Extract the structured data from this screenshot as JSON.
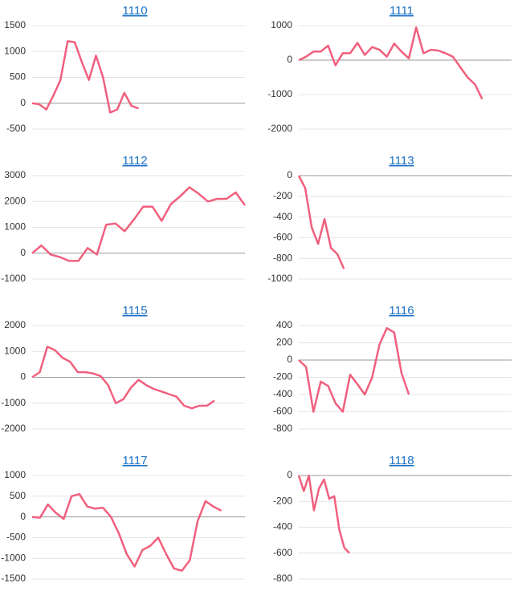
{
  "chart_data": [
    {
      "type": "line",
      "title": "1110",
      "color": "#f0607e",
      "grid": true,
      "ylim": [
        -500,
        1500
      ],
      "yticks": [
        1500,
        1000,
        500,
        0,
        -500
      ],
      "values": [
        0,
        -20,
        -120,
        150,
        450,
        1200,
        1180,
        800,
        450,
        920,
        500,
        -180,
        -120,
        200,
        -50,
        -100,
        null,
        null,
        null,
        null,
        null,
        null,
        null,
        null,
        null,
        null,
        null,
        null,
        null,
        null,
        null
      ]
    },
    {
      "type": "line",
      "title": "1111",
      "color": "#f0607e",
      "grid": true,
      "ylim": [
        -2000,
        1000
      ],
      "yticks": [
        1000,
        0,
        -1000,
        -2000
      ],
      "values": [
        0,
        100,
        250,
        250,
        420,
        -150,
        200,
        200,
        500,
        150,
        380,
        300,
        100,
        480,
        250,
        50,
        950,
        200,
        300,
        280,
        200,
        100,
        -200,
        -500,
        -700,
        -1130,
        null,
        null,
        null,
        null
      ]
    },
    {
      "type": "line",
      "title": "1112",
      "color": "#f0607e",
      "grid": true,
      "ylim": [
        -1000,
        3000
      ],
      "yticks": [
        3000,
        2000,
        1000,
        0,
        -1000
      ],
      "values": [
        0,
        300,
        -50,
        -150,
        -300,
        -300,
        200,
        -50,
        1100,
        1150,
        850,
        1300,
        1800,
        1800,
        1250,
        1900,
        2200,
        2550,
        2300,
        2000,
        2100,
        2100,
        2350,
        1850
      ]
    },
    {
      "type": "line",
      "title": "1113",
      "color": "#f0607e",
      "grid": true,
      "ylim": [
        -1000,
        0
      ],
      "yticks": [
        0,
        -200,
        -400,
        -600,
        -800,
        -1000
      ],
      "values": [
        0,
        -120,
        -500,
        -660,
        -420,
        -700,
        -760,
        -900,
        null,
        null,
        null,
        null,
        null,
        null,
        null,
        null,
        null,
        null,
        null,
        null,
        null,
        null,
        null,
        null,
        null,
        null,
        null,
        null,
        null,
        null,
        null,
        null,
        null,
        null
      ]
    },
    {
      "type": "line",
      "title": "1115",
      "color": "#f0607e",
      "grid": true,
      "ylim": [
        -2000,
        2000
      ],
      "yticks": [
        2000,
        1000,
        0,
        -1000,
        -2000
      ],
      "values": [
        0,
        200,
        1180,
        1050,
        750,
        600,
        200,
        200,
        150,
        50,
        -300,
        -1000,
        -850,
        -400,
        -100,
        -300,
        -450,
        -550,
        -650,
        -750,
        -1100,
        -1200,
        -1100,
        -1100,
        -900,
        null,
        null,
        null,
        null
      ]
    },
    {
      "type": "line",
      "title": "1116",
      "color": "#f0607e",
      "grid": true,
      "ylim": [
        -800,
        400
      ],
      "yticks": [
        400,
        200,
        0,
        -200,
        -400,
        -600,
        -800
      ],
      "values": [
        0,
        -80,
        -600,
        -250,
        -300,
        -500,
        -600,
        -170,
        -280,
        -400,
        -200,
        180,
        370,
        320,
        -150,
        -400,
        null,
        null,
        null,
        null,
        null,
        null,
        null,
        null,
        null,
        null,
        null,
        null,
        null,
        null
      ]
    },
    {
      "type": "line",
      "title": "1117",
      "color": "#f0607e",
      "grid": true,
      "ylim": [
        -1500,
        1000
      ],
      "yticks": [
        1000,
        500,
        0,
        -500,
        -1000,
        -1500
      ],
      "values": [
        0,
        -20,
        300,
        100,
        -50,
        500,
        550,
        250,
        200,
        220,
        0,
        -400,
        -900,
        -1200,
        -800,
        -700,
        -500,
        -900,
        -1250,
        -1300,
        -1050,
        -100,
        380,
        250,
        150,
        null,
        null,
        null
      ]
    },
    {
      "type": "line",
      "title": "1118",
      "color": "#f0607e",
      "grid": true,
      "ylim": [
        -800,
        0
      ],
      "yticks": [
        0,
        -200,
        -400,
        -600,
        -800
      ],
      "values": [
        0,
        -120,
        0,
        -270,
        -100,
        -30,
        -180,
        -160,
        -420,
        -560,
        -600,
        null,
        null,
        null,
        null,
        null,
        null,
        null,
        null,
        null,
        null,
        null,
        null,
        null,
        null,
        null,
        null,
        null,
        null,
        null,
        null,
        null,
        null,
        null,
        null,
        null,
        null,
        null,
        null,
        null,
        null,
        null,
        null
      ]
    }
  ]
}
